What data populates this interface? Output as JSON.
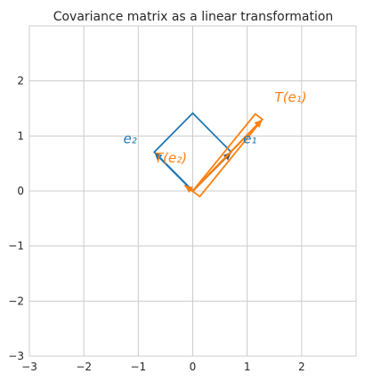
{
  "chart_data": {
    "type": "line",
    "title": "Covariance matrix as a linear transformation",
    "xlabel": "",
    "ylabel": "",
    "xlim": [
      -3,
      3
    ],
    "ylim": [
      -3,
      3
    ],
    "grid": true,
    "x_ticks": [
      -3,
      -2,
      -1,
      0,
      1,
      2
    ],
    "x_tick_labels": [
      "−3",
      "−2",
      "−1",
      "0",
      "1",
      "2"
    ],
    "y_ticks": [
      -3,
      -2,
      -1,
      0,
      1,
      2
    ],
    "y_tick_labels": [
      "−3",
      "−2",
      "−1",
      "0",
      "1",
      "2"
    ],
    "colors": {
      "original": "#1f77b4",
      "transformed": "#ff7f0e",
      "grid": "#cccccc",
      "axis": "#262626"
    },
    "shapes": [
      {
        "name": "original-square",
        "color": "#1f77b4",
        "points": [
          [
            0,
            0
          ],
          [
            0.707,
            0.707
          ],
          [
            0,
            1.414
          ],
          [
            -0.707,
            0.707
          ],
          [
            0,
            0
          ]
        ]
      },
      {
        "name": "transformed-parallelogram",
        "color": "#ff7f0e",
        "points": [
          [
            0,
            0
          ],
          [
            1.15,
            1.4
          ],
          [
            1.28,
            1.3
          ],
          [
            0.13,
            -0.1
          ],
          [
            -0.15,
            0.1
          ],
          [
            0,
            0
          ]
        ]
      }
    ],
    "vectors": [
      {
        "name": "e1",
        "color": "#555555",
        "from": [
          0,
          0
        ],
        "to": [
          0.707,
          0.707
        ]
      },
      {
        "name": "e2",
        "color": "#1f77b4",
        "from": [
          0,
          0
        ],
        "to": [
          -0.707,
          0.707
        ]
      },
      {
        "name": "T(e1)",
        "color": "#ff7f0e",
        "from": [
          0,
          0
        ],
        "to": [
          1.28,
          1.3
        ]
      },
      {
        "name": "T(e2)",
        "color": "#ff7f0e",
        "from": [
          0,
          0
        ],
        "to": [
          -0.15,
          0.1
        ]
      }
    ],
    "annotations": [
      {
        "name": "label-e1",
        "text": "e₁",
        "x": 1.05,
        "y": 0.95,
        "color": "#1f77b4"
      },
      {
        "name": "label-e2",
        "text": "e₂",
        "x": -1.15,
        "y": 0.95,
        "color": "#1f77b4"
      },
      {
        "name": "label-te1",
        "text": "T(e₁)",
        "x": 1.8,
        "y": 1.7,
        "color": "#ff7f0e"
      },
      {
        "name": "label-te2",
        "text": "T(e₂)",
        "x": -0.4,
        "y": 0.6,
        "color": "#ff7f0e"
      }
    ]
  }
}
